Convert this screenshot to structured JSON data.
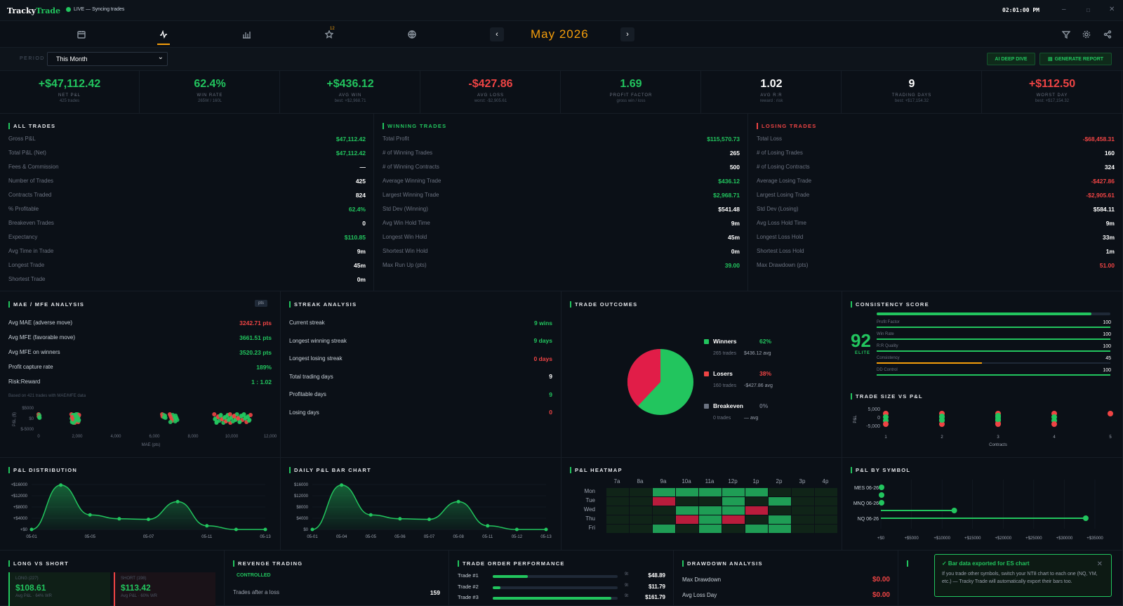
{
  "app": {
    "name": "Tracky",
    "name_accent": "Trade",
    "status": "LIVE — Syncing trades",
    "clock": "02:01:00 PM"
  },
  "nav": {
    "month": "May 2026",
    "prev": "‹",
    "next": "›",
    "badge": "12"
  },
  "filter": {
    "period_label": "PERIOD",
    "period_value": "This Month",
    "ai_button": "AI DEEP DIVE",
    "report_button": "GENERATE REPORT"
  },
  "kpis": [
    {
      "value": "+$47,112.42",
      "label": "NET P&L",
      "sub": "425 trades",
      "color": "#22c55e"
    },
    {
      "value": "62.4%",
      "label": "WIN RATE",
      "sub": "265W / 160L",
      "color": "#22c55e"
    },
    {
      "value": "+$436.12",
      "label": "AVG WIN",
      "sub": "best: +$2,968.71",
      "color": "#22c55e"
    },
    {
      "value": "-$427.86",
      "label": "AVG LOSS",
      "sub": "worst: -$2,905.61",
      "color": "#ef4444"
    },
    {
      "value": "1.69",
      "label": "PROFIT FACTOR",
      "sub": "gross win / loss",
      "color": "#22c55e"
    },
    {
      "value": "1.02",
      "label": "AVG R:R",
      "sub": "reward : risk",
      "color": "#ffffff"
    },
    {
      "value": "9",
      "label": "TRADING DAYS",
      "sub": "best: +$17,154.32",
      "color": "#ffffff"
    },
    {
      "value": "+$112.50",
      "label": "WORST DAY",
      "sub": "best: +$17,154.32",
      "color": "#ef4444"
    }
  ],
  "all_trades": {
    "title": "ALL TRADES",
    "rows": [
      {
        "k": "Gross P&L",
        "v": "$47,112.42",
        "c": "#22c55e"
      },
      {
        "k": "Total P&L (Net)",
        "v": "$47,112.42",
        "c": "#22c55e"
      },
      {
        "k": "Fees & Commission",
        "v": "—",
        "c": "#ffffff"
      },
      {
        "k": "Number of Trades",
        "v": "425",
        "c": "#ffffff"
      },
      {
        "k": "Contracts Traded",
        "v": "824",
        "c": "#ffffff"
      },
      {
        "k": "% Profitable",
        "v": "62.4%",
        "c": "#22c55e"
      },
      {
        "k": "Breakeven Trades",
        "v": "0",
        "c": "#ffffff"
      },
      {
        "k": "Expectancy",
        "v": "$110.85",
        "c": "#22c55e"
      },
      {
        "k": "Avg Time in Trade",
        "v": "9m",
        "c": "#ffffff"
      },
      {
        "k": "Longest Trade",
        "v": "45m",
        "c": "#ffffff"
      },
      {
        "k": "Shortest Trade",
        "v": "0m",
        "c": "#ffffff"
      }
    ]
  },
  "winning_trades": {
    "title": "WINNING TRADES",
    "rows": [
      {
        "k": "Total Profit",
        "v": "$115,570.73",
        "c": "#22c55e"
      },
      {
        "k": "# of Winning Trades",
        "v": "265",
        "c": "#ffffff"
      },
      {
        "k": "# of Winning Contracts",
        "v": "500",
        "c": "#ffffff"
      },
      {
        "k": "Average Winning Trade",
        "v": "$436.12",
        "c": "#22c55e"
      },
      {
        "k": "Largest Winning Trade",
        "v": "$2,968.71",
        "c": "#22c55e"
      },
      {
        "k": "Std Dev (Winning)",
        "v": "$541.48",
        "c": "#ffffff"
      },
      {
        "k": "Avg Win Hold Time",
        "v": "9m",
        "c": "#ffffff"
      },
      {
        "k": "Longest Win Hold",
        "v": "45m",
        "c": "#ffffff"
      },
      {
        "k": "Shortest Win Hold",
        "v": "0m",
        "c": "#ffffff"
      },
      {
        "k": "Max Run Up (pts)",
        "v": "39.00",
        "c": "#22c55e"
      }
    ]
  },
  "losing_trades": {
    "title": "LOSING TRADES",
    "rows": [
      {
        "k": "Total Loss",
        "v": "-$68,458.31",
        "c": "#ef4444"
      },
      {
        "k": "# of Losing Trades",
        "v": "160",
        "c": "#ffffff"
      },
      {
        "k": "# of Losing Contracts",
        "v": "324",
        "c": "#ffffff"
      },
      {
        "k": "Average Losing Trade",
        "v": "-$427.86",
        "c": "#ef4444"
      },
      {
        "k": "Largest Losing Trade",
        "v": "-$2,905.61",
        "c": "#ef4444"
      },
      {
        "k": "Std Dev (Losing)",
        "v": "$584.11",
        "c": "#ffffff"
      },
      {
        "k": "Avg Loss Hold Time",
        "v": "9m",
        "c": "#ffffff"
      },
      {
        "k": "Longest Loss Hold",
        "v": "33m",
        "c": "#ffffff"
      },
      {
        "k": "Shortest Loss Hold",
        "v": "1m",
        "c": "#ffffff"
      },
      {
        "k": "Max Drawdown (pts)",
        "v": "51.00",
        "c": "#ef4444"
      }
    ]
  },
  "mae": {
    "title": "MAE / MFE ANALYSIS",
    "pill": "pts",
    "note": "Based on 421 trades with MAE/MFE data",
    "rows": [
      {
        "k": "Avg MAE (adverse move)",
        "v": "3242.71 pts",
        "c": "#ef4444"
      },
      {
        "k": "Avg MFE (favorable move)",
        "v": "3661.51 pts",
        "c": "#22c55e"
      },
      {
        "k": "Avg MFE on winners",
        "v": "3520.23 pts",
        "c": "#22c55e"
      },
      {
        "k": "Profit capture rate",
        "v": "189%",
        "c": "#22c55e"
      },
      {
        "k": "Risk:Reward",
        "v": "1 : 1.02",
        "c": "#22c55e"
      }
    ],
    "ylabel": "P&L ($)",
    "xlabel": "MAE (pts)",
    "yticks": [
      "$5000",
      "$0",
      "$-5000"
    ],
    "xticks": [
      "0",
      "2,000",
      "4,000",
      "6,000",
      "8,000",
      "10,000",
      "12,000"
    ]
  },
  "streak": {
    "title": "STREAK ANALYSIS",
    "rows": [
      {
        "k": "Current streak",
        "v": "9 wins",
        "c": "#22c55e"
      },
      {
        "k": "Longest winning streak",
        "v": "9 days",
        "c": "#22c55e"
      },
      {
        "k": "Longest losing streak",
        "v": "0 days",
        "c": "#ef4444"
      },
      {
        "k": "Total trading days",
        "v": "9",
        "c": "#ffffff"
      },
      {
        "k": "Profitable days",
        "v": "9",
        "c": "#22c55e"
      },
      {
        "k": "Losing days",
        "v": "0",
        "c": "#ef4444"
      }
    ]
  },
  "outcomes": {
    "title": "TRADE OUTCOMES",
    "items": [
      {
        "name": "Winners",
        "pct": "62%",
        "sub1": "265 trades",
        "sub2": "$436.12 avg",
        "color": "#22c55e"
      },
      {
        "name": "Losers",
        "pct": "38%",
        "sub1": "160 trades",
        "sub2": "-$427.86 avg",
        "color": "#ef4444"
      },
      {
        "name": "Breakeven",
        "pct": "0%",
        "sub1": "0 trades",
        "sub2": "— avg",
        "color": "#6b7280"
      }
    ]
  },
  "consistency": {
    "title": "CONSISTENCY SCORE",
    "score": "92",
    "grade": "ELITE",
    "overall": 0.92,
    "items": [
      {
        "k": "Profit Factor",
        "v": "100",
        "f": 1.0,
        "c": "#22c55e"
      },
      {
        "k": "Win Rate",
        "v": "100",
        "f": 1.0,
        "c": "#22c55e"
      },
      {
        "k": "R:R Quality",
        "v": "100",
        "f": 1.0,
        "c": "#22c55e"
      },
      {
        "k": "Consistency",
        "v": "45",
        "f": 0.45,
        "c": "#f59e0b"
      },
      {
        "k": "DD Control",
        "v": "100",
        "f": 1.0,
        "c": "#22c55e"
      }
    ]
  },
  "trade_size": {
    "title": "TRADE SIZE VS P&L",
    "ylabel": "P&L",
    "xlabel": "Contracts",
    "yticks": [
      "5,000",
      "0",
      "-5,000"
    ],
    "xticks": [
      "1",
      "2",
      "3",
      "4",
      "5"
    ]
  },
  "pnl_dist": {
    "title": "P&L DISTRIBUTION",
    "yticks": [
      "+$16000",
      "+$12000",
      "+$8000",
      "+$4000",
      "+$0"
    ],
    "xticks": [
      "05-01",
      "05-05",
      "05-07",
      "05-11",
      "05-13"
    ]
  },
  "daily_bar": {
    "title": "DAILY P&L BAR CHART",
    "yticks": [
      "$16000",
      "$12000",
      "$8000",
      "$4000",
      "$0"
    ],
    "xticks": [
      "05-01",
      "05-04",
      "05-05",
      "05-06",
      "05-07",
      "05-08",
      "05-11",
      "05-12",
      "05-13"
    ]
  },
  "heatmap": {
    "title": "P&L HEATMAP",
    "hours": [
      "7a",
      "8a",
      "9a",
      "10a",
      "11a",
      "12p",
      "1p",
      "2p",
      "3p",
      "4p"
    ],
    "days": [
      "Mon",
      "Tue",
      "Wed",
      "Thu",
      "Fri"
    ]
  },
  "by_symbol": {
    "title": "P&L BY SYMBOL",
    "symbols": [
      "MES 06-26",
      "MNQ 06-26",
      "NQ 06-26"
    ],
    "xticks": [
      "+$0",
      "+$5000",
      "+$10000",
      "+$15000",
      "+$20000",
      "+$25000",
      "+$30000",
      "+$35000"
    ]
  },
  "bottom": {
    "long_short": {
      "title": "LONG VS SHORT",
      "long_label": "LONG (227)",
      "long_value": "$108.61",
      "long_sub": "Avg P&L · 64% WR",
      "short_label": "SHORT (198)",
      "short_value": "$113.42",
      "short_sub": "Avg P&L · 60% WR"
    },
    "revenge": {
      "title": "REVENGE TRADING",
      "badge": "CONTROLLED",
      "row_k": "Trades after a loss",
      "row_v": "159"
    },
    "order_perf": {
      "title": "TRADE ORDER PERFORMANCE",
      "rows": [
        {
          "k": "Trade #1",
          "n": "9t",
          "v": "$48.89",
          "f": 0.28
        },
        {
          "k": "Trade #2",
          "n": "9t",
          "v": "$11.79",
          "f": 0.06
        },
        {
          "k": "Trade #3",
          "n": "9t",
          "v": "$161.79",
          "f": 0.95
        }
      ]
    },
    "drawdown": {
      "title": "DRAWDOWN ANALYSIS",
      "rows": [
        {
          "k": "Max Drawdown",
          "v": "$0.00"
        },
        {
          "k": "Avg Loss Day",
          "v": "$0.00"
        }
      ]
    }
  },
  "toast": {
    "title": "✓ Bar data exported for ES chart",
    "body": "If you trade other symbols, switch your NT8 chart to each one (NQ, YM, etc.) — Tracky Trade will automatically export their bars too.",
    "close": "✕"
  }
}
